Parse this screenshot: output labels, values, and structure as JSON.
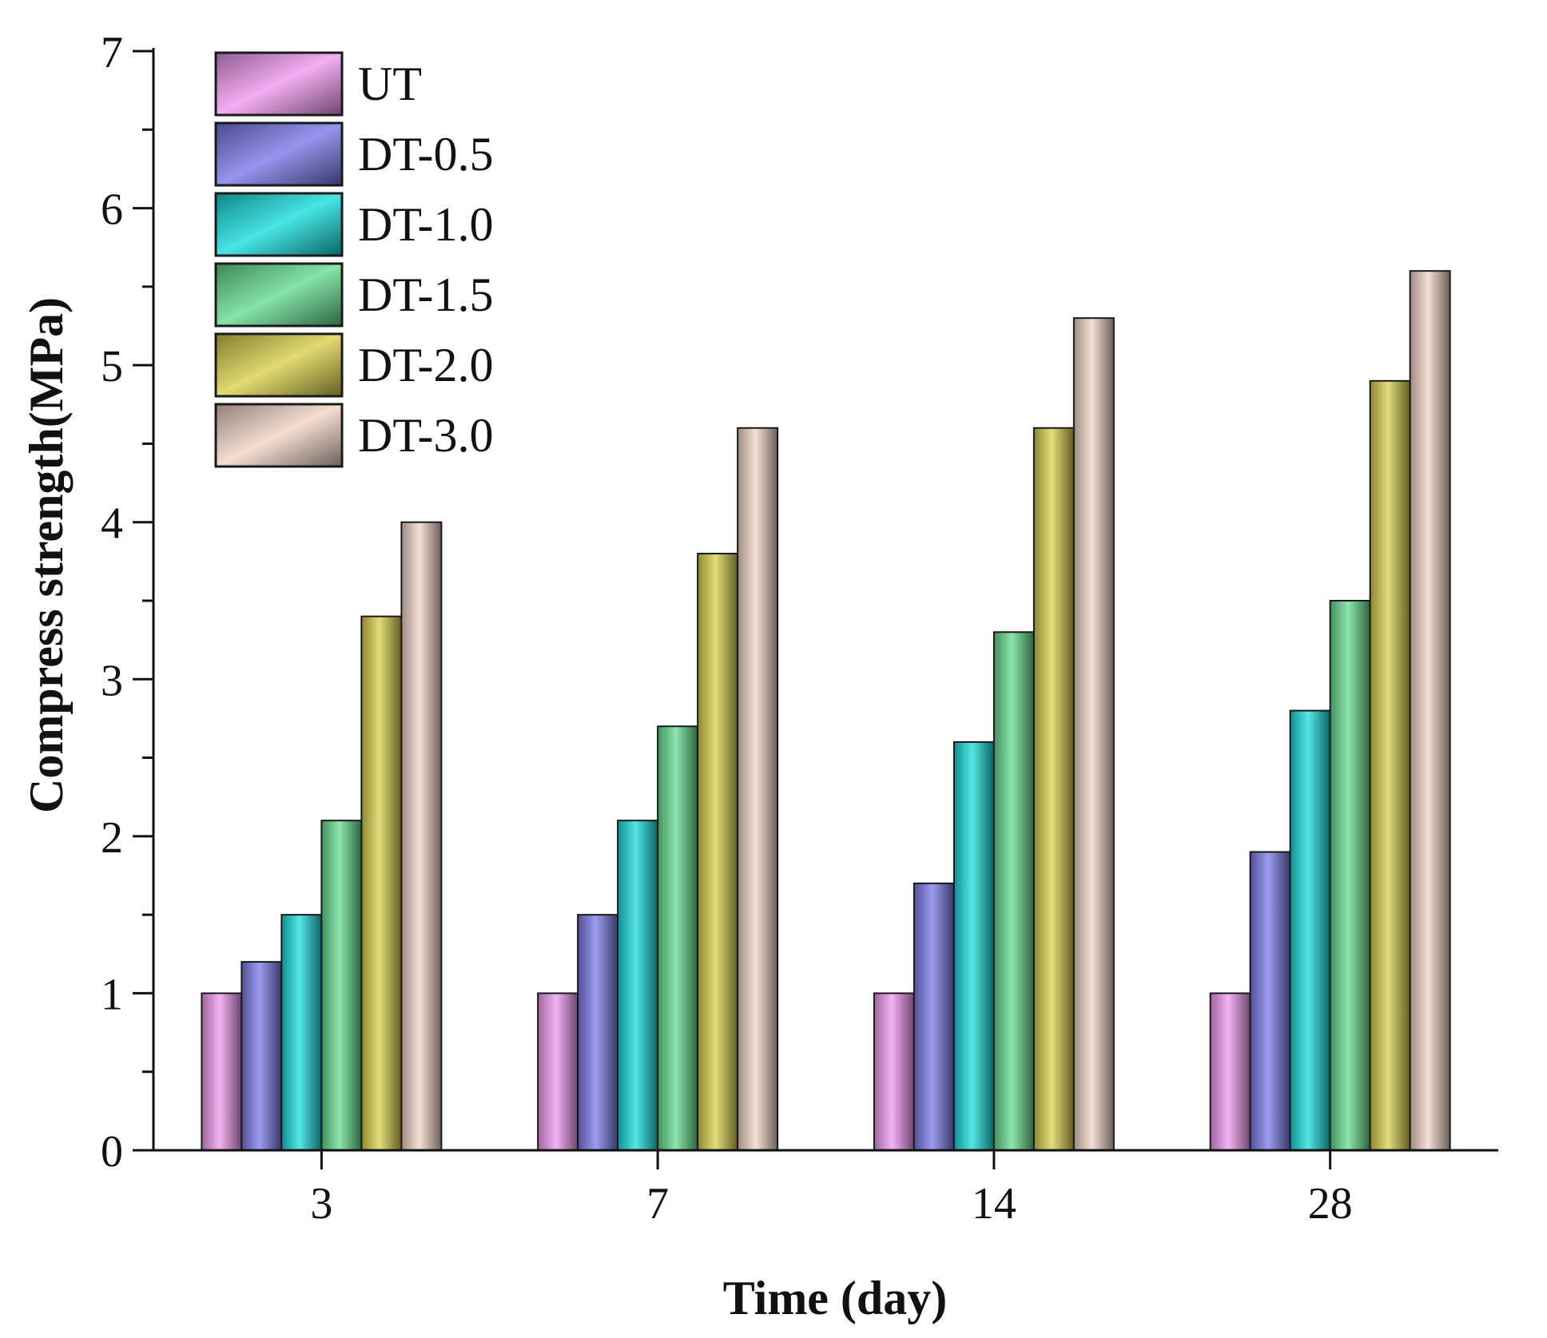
{
  "chart_data": {
    "type": "bar",
    "xlabel": "Time (day)",
    "ylabel": "Compress strength(MPa)",
    "categories": [
      "3",
      "7",
      "14",
      "28"
    ],
    "ylim": [
      0,
      7
    ],
    "yticks": [
      "0",
      "1",
      "2",
      "3",
      "4",
      "5",
      "6",
      "7"
    ],
    "grid": false,
    "legend_position": "top-left",
    "series": [
      {
        "name": "UT",
        "color": "#f09af0",
        "values": [
          1.0,
          1.0,
          1.0,
          1.0
        ]
      },
      {
        "name": "DT-0.5",
        "color": "#7b7bea",
        "values": [
          1.2,
          1.5,
          1.7,
          1.9
        ]
      },
      {
        "name": "DT-1.0",
        "color": "#19dede",
        "values": [
          1.5,
          2.1,
          2.6,
          2.8
        ]
      },
      {
        "name": "DT-1.5",
        "color": "#66dd92",
        "values": [
          2.1,
          2.7,
          3.3,
          3.5
        ]
      },
      {
        "name": "DT-2.0",
        "color": "#d9d14c",
        "values": [
          3.4,
          3.8,
          4.6,
          4.9
        ]
      },
      {
        "name": "DT-3.0",
        "color": "#f1d6c6",
        "values": [
          4.0,
          4.6,
          5.3,
          5.6
        ]
      }
    ]
  }
}
